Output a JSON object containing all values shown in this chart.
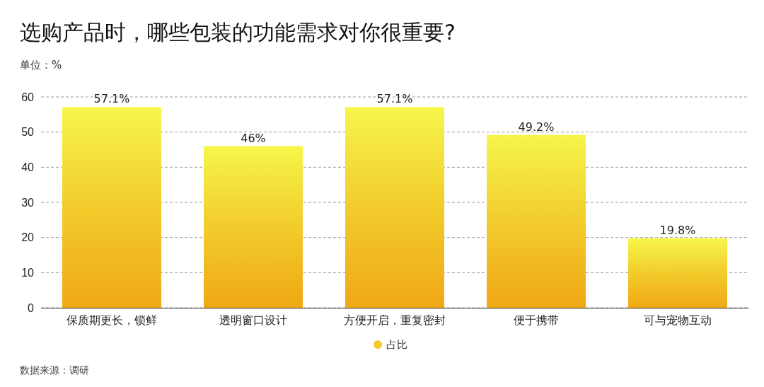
{
  "chart_data": {
    "type": "bar",
    "title": "选购产品时，哪些包装的功能需求对你很重要?",
    "ylabel": "单位：%",
    "categories": [
      "保质期更长，锁鲜",
      "透明窗口设计",
      "方便开启，重复密封",
      "便于携带",
      "可与宠物互动"
    ],
    "series": [
      {
        "name": "占比",
        "color": "#f2cc2c",
        "values": [
          57.1,
          46,
          57.1,
          49.2,
          19.8
        ]
      }
    ],
    "value_labels": [
      "57.1%",
      "46%",
      "57.1%",
      "49.2%",
      "19.8%"
    ],
    "ylim": [
      0,
      60
    ],
    "yticks": [
      0,
      10,
      20,
      30,
      40,
      50,
      60
    ],
    "grid": "y",
    "legend": "bottom",
    "annotations": [
      "数据来源：调研"
    ]
  }
}
